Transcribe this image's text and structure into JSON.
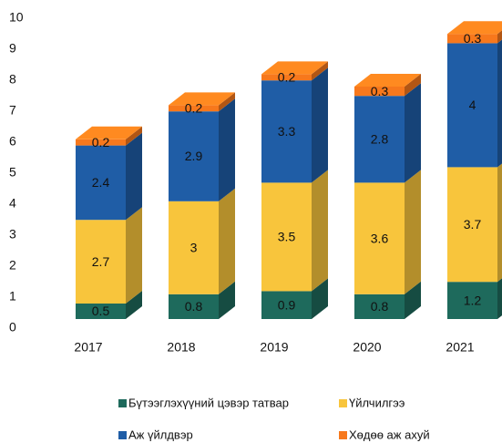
{
  "chart_data": {
    "type": "bar3d_stacked",
    "categories": [
      "2017",
      "2018",
      "2019",
      "2020",
      "2021"
    ],
    "series": [
      {
        "name": "Бүтээглэхүүний цэвэр татвар",
        "color": "#1e6a5c",
        "values": [
          0.5,
          0.8,
          0.9,
          0.8,
          1.2
        ]
      },
      {
        "name": "Үйлчилгээ",
        "color": "#f8c53c",
        "values": [
          2.7,
          3,
          3.5,
          3.6,
          3.7
        ]
      },
      {
        "name": "Аж үйлдвэр",
        "color": "#1f5da6",
        "values": [
          2.4,
          2.9,
          3.3,
          2.8,
          4
        ]
      },
      {
        "name": "Хөдөө аж ахуй",
        "color": "#f7781c",
        "values": [
          0.2,
          0.2,
          0.2,
          0.3,
          0.3
        ]
      }
    ],
    "ylim": [
      0,
      10
    ],
    "yticks": [
      0,
      1,
      2,
      3,
      4,
      5,
      6,
      7,
      8,
      9,
      10
    ],
    "grid": false
  }
}
